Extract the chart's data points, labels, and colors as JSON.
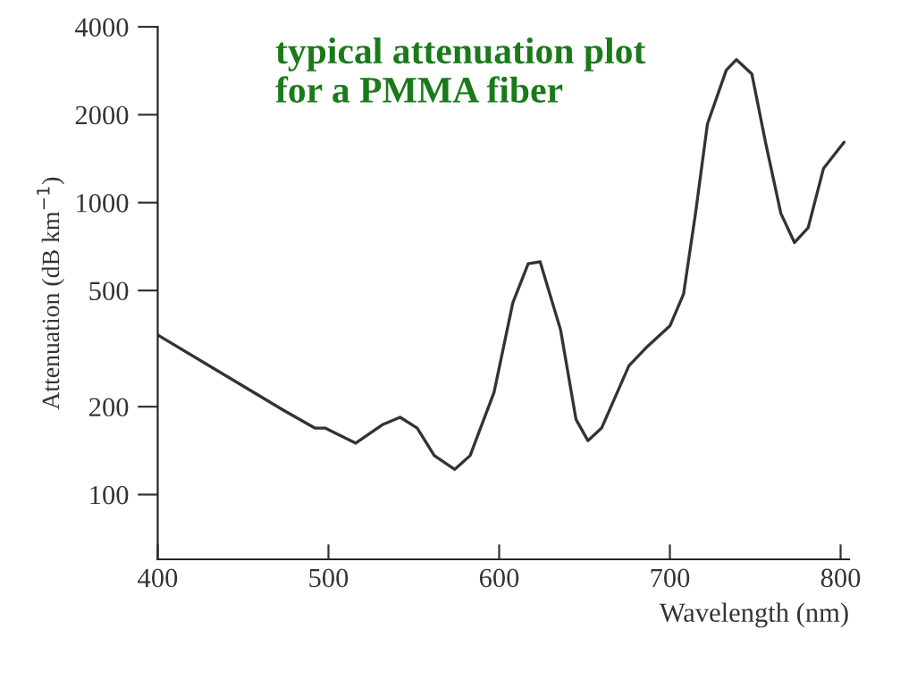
{
  "chart_data": {
    "type": "line",
    "title": "typical attenuation plot\nfor a PMMA fiber",
    "xlabel": "Wavelength (nm)",
    "ylabel": "Attenuation (dB km$^{−1}$)",
    "x": [
      400,
      474,
      492,
      498,
      516,
      532,
      542,
      552,
      562,
      574,
      583,
      597,
      608,
      617,
      624,
      636,
      645,
      652,
      660,
      676,
      686,
      700,
      708,
      715,
      722,
      733,
      739,
      748,
      756,
      765,
      773,
      781,
      790,
      802
    ],
    "series": [
      {
        "color": "#333333",
        "values": [
          352,
          194,
          169,
          169,
          150,
          174,
          184,
          169,
          136,
          122,
          136,
          224,
          454,
          618,
          627,
          366,
          181,
          153,
          169,
          276,
          318,
          378,
          486,
          918,
          1860,
          2840,
          3090,
          2760,
          1610,
          918,
          730,
          820,
          1310,
          1610
        ]
      }
    ],
    "log": "y",
    "xlim": [
      400,
      805
    ],
    "ylim": [
      60,
      4000
    ],
    "xticks": [
      400,
      500,
      600,
      700,
      800
    ],
    "yticks": [
      100,
      200,
      500,
      1000,
      2000,
      4000
    ],
    "grid": false,
    "legend": false,
    "marker": "none",
    "line_style": "solid"
  }
}
